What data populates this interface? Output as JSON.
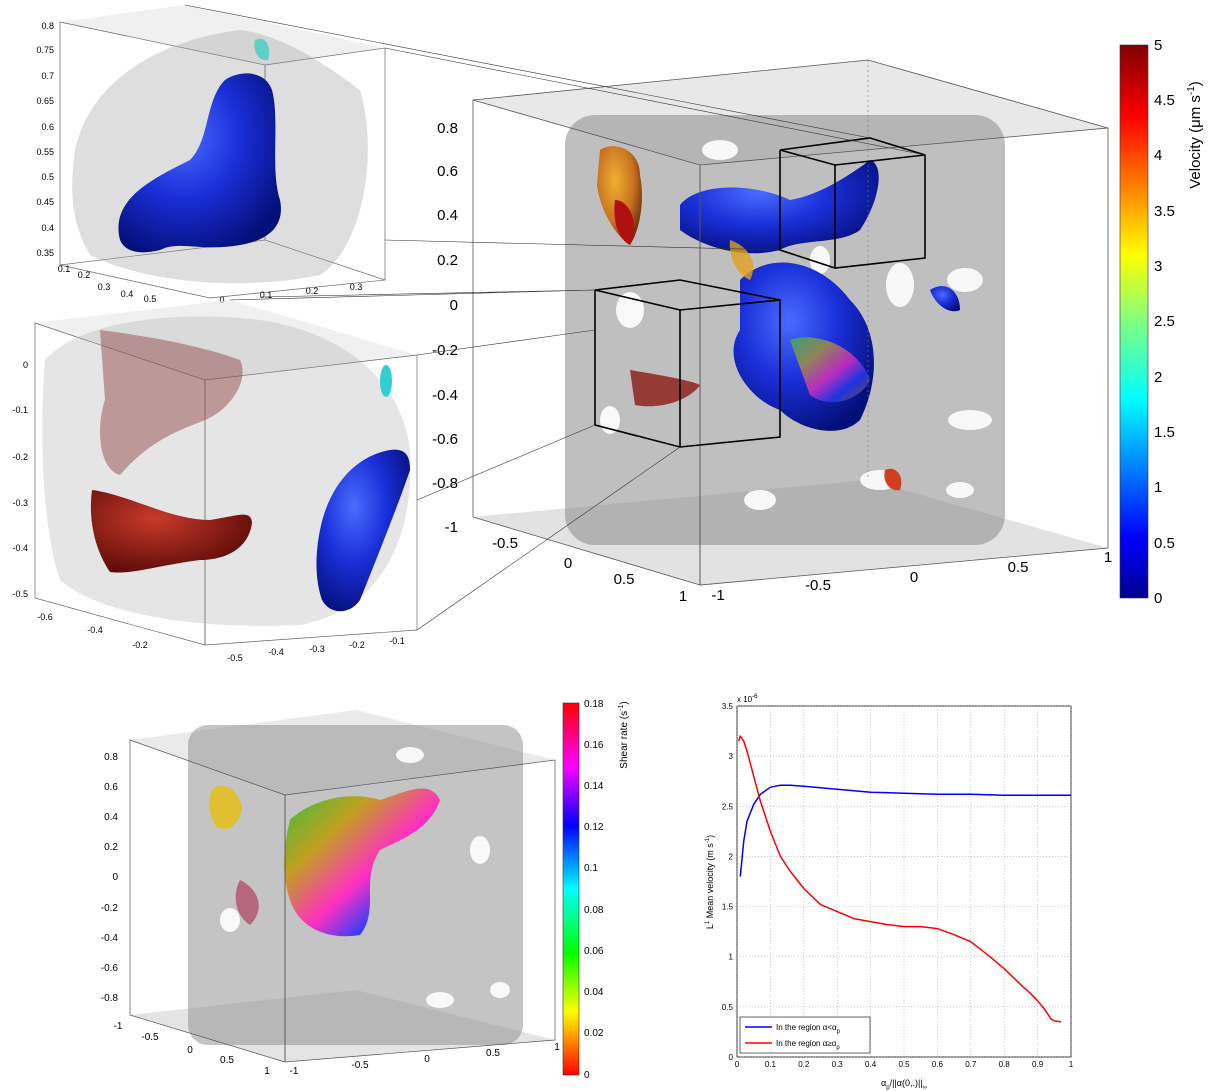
{
  "velocity_colorbar": {
    "label": "Velocity  (μm s",
    "label_sup": "-1",
    "label_tail": ")",
    "ticks": [
      "5",
      "4.5",
      "4",
      "3.5",
      "3",
      "2.5",
      "2",
      "1.5",
      "1",
      "0.5",
      "0"
    ]
  },
  "shear_colorbar": {
    "label": "Shear rate (s",
    "label_sup": "-1",
    "label_tail": ")",
    "ticks": [
      "0.18",
      "0.16",
      "0.14",
      "0.12",
      "0.1",
      "0.08",
      "0.06",
      "0.04",
      "0.02",
      "0"
    ]
  },
  "main_cube": {
    "z_ticks": [
      "0.8",
      "0.6",
      "0.4",
      "0.2",
      "0",
      "-0.2",
      "-0.4",
      "-0.6",
      "-0.8",
      "-1"
    ],
    "y_ticks": [
      "-0.5",
      "0",
      "0.5",
      "1"
    ],
    "x_ticks": [
      "-1",
      "-0.5",
      "0",
      "0.5",
      "1"
    ]
  },
  "inset_top": {
    "z_ticks": [
      "0.8",
      "0.75",
      "0.7",
      "0.65",
      "0.6",
      "0.55",
      "0.5",
      "0.45",
      "0.4",
      "0.35"
    ],
    "y_ticks": [
      "0.1",
      "0.2",
      "0.3",
      "0.4",
      "0.5"
    ],
    "x_ticks": [
      "0",
      "0.1",
      "0.2",
      "0.3"
    ]
  },
  "inset_mid": {
    "z_ticks": [
      "0",
      "-0.1",
      "-0.2",
      "-0.3",
      "-0.4",
      "-0.5"
    ],
    "y_ticks": [
      "-0.6",
      "-0.4",
      "-0.2"
    ],
    "x_ticks": [
      "-0.5",
      "-0.4",
      "-0.3",
      "-0.2",
      "-0.1"
    ]
  },
  "bottom_cube": {
    "z_ticks": [
      "0.8",
      "0.6",
      "0.4",
      "0.2",
      "0",
      "-0.2",
      "-0.4",
      "-0.6",
      "-0.8"
    ],
    "y_ticks": [
      "-1",
      "-0.5",
      "0",
      "0.5",
      "1"
    ],
    "x_ticks": [
      "-1",
      "-0.5",
      "0",
      "0.5",
      "1"
    ]
  },
  "chart_data": {
    "type": "line",
    "title": "",
    "xlabel": "α",
    "xlabel_sub": "p",
    "xlabel_tail": "/||α(0,.)||",
    "xlabel_sub2": "∞",
    "ylabel": "L",
    "ylabel_sup": "1",
    "ylabel_tail": " Mean velocity (m s",
    "ylabel_sup2": "-1",
    "ylabel_tail2": ")",
    "y_multiplier": "x 10",
    "y_multiplier_exp": "-6",
    "xlim": [
      0,
      1
    ],
    "ylim": [
      0,
      3.5
    ],
    "x_ticks": [
      "0",
      "0.1",
      "0.2",
      "0.3",
      "0.4",
      "0.5",
      "0.6",
      "0.7",
      "0.8",
      "0.9",
      "1"
    ],
    "y_ticks": [
      "0",
      "0.5",
      "1",
      "1.5",
      "2",
      "2.5",
      "3",
      "3.5"
    ],
    "grid": true,
    "legend_position": "bottom-left",
    "series": [
      {
        "name": "In the region  α<α",
        "name_sub": "p",
        "color": "#0000ff",
        "x": [
          0.01,
          0.02,
          0.03,
          0.05,
          0.07,
          0.1,
          0.13,
          0.16,
          0.2,
          0.3,
          0.4,
          0.5,
          0.6,
          0.7,
          0.8,
          0.9,
          1.0
        ],
        "y": [
          1.8,
          2.15,
          2.35,
          2.52,
          2.62,
          2.69,
          2.71,
          2.71,
          2.7,
          2.67,
          2.64,
          2.63,
          2.62,
          2.62,
          2.61,
          2.61,
          2.61
        ]
      },
      {
        "name": "In the region  α≥α",
        "name_sub": "p",
        "color": "#ff0000",
        "x": [
          0.005,
          0.01,
          0.02,
          0.03,
          0.05,
          0.07,
          0.1,
          0.13,
          0.16,
          0.2,
          0.25,
          0.3,
          0.35,
          0.4,
          0.45,
          0.5,
          0.55,
          0.6,
          0.65,
          0.7,
          0.75,
          0.8,
          0.85,
          0.88,
          0.9,
          0.92,
          0.94,
          0.95,
          0.97
        ],
        "y": [
          3.15,
          3.2,
          3.15,
          3.05,
          2.8,
          2.55,
          2.25,
          2.0,
          1.85,
          1.68,
          1.52,
          1.45,
          1.38,
          1.35,
          1.32,
          1.3,
          1.3,
          1.28,
          1.22,
          1.15,
          1.02,
          0.88,
          0.72,
          0.63,
          0.56,
          0.48,
          0.38,
          0.36,
          0.35
        ]
      }
    ]
  }
}
